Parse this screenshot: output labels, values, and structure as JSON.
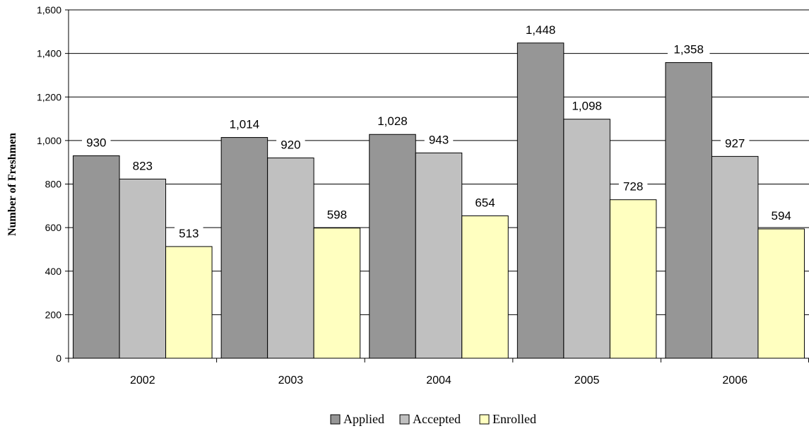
{
  "chart_data": {
    "type": "bar",
    "categories": [
      "2002",
      "2003",
      "2004",
      "2005",
      "2006"
    ],
    "series": [
      {
        "name": "Applied",
        "values": [
          930,
          1014,
          1028,
          1448,
          1358
        ],
        "value_labels": [
          "930",
          "1,014",
          "1,028",
          "1,448",
          "1,358"
        ],
        "color": "#969696"
      },
      {
        "name": "Accepted",
        "values": [
          823,
          920,
          943,
          1098,
          927
        ],
        "value_labels": [
          "823",
          "920",
          "943",
          "1,098",
          "927"
        ],
        "color": "#c0c0c0"
      },
      {
        "name": "Enrolled",
        "values": [
          513,
          598,
          654,
          728,
          594
        ],
        "value_labels": [
          "513",
          "598",
          "654",
          "728",
          "594"
        ],
        "color": "#ffffc0"
      }
    ],
    "ylabel": "Number of Freshmen",
    "xlabel": "",
    "ylim": [
      0,
      1600
    ],
    "yticks": [
      0,
      200,
      400,
      600,
      800,
      1000,
      1200,
      1400,
      1600
    ],
    "ytick_labels": [
      "0",
      "200",
      "400",
      "600",
      "800",
      "1,000",
      "1,200",
      "1,400",
      "1,600"
    ],
    "grid": true,
    "legend_position": "bottom"
  }
}
